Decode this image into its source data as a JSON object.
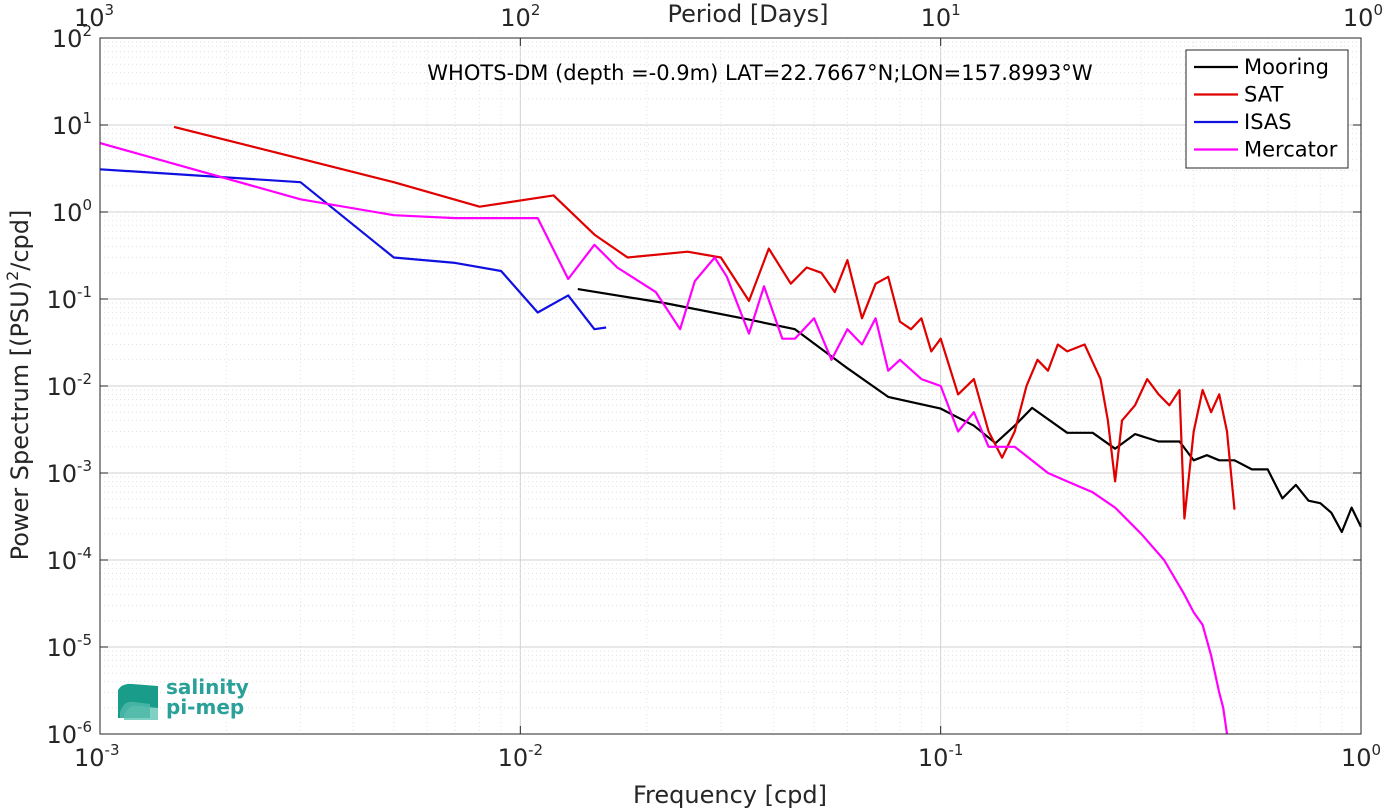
{
  "chart_data": {
    "type": "line",
    "title": "WHOTS-DM (depth =-0.9m) LAT=22.7667°N;LON=157.8993°W",
    "xlabel": "Frequency [cpd]",
    "ylabel": "Power Spectrum [(PSU)²/cpd]",
    "top_xlabel": "Period [Days]",
    "x_scale": "log",
    "y_scale": "log",
    "xlim": [
      0.001,
      1
    ],
    "ylim": [
      1e-06,
      100
    ],
    "grid": true,
    "legend_placement": "top-right",
    "x_ticks": [
      {
        "v": 0.001,
        "base": "10",
        "exp": "-3"
      },
      {
        "v": 0.01,
        "base": "10",
        "exp": "-2"
      },
      {
        "v": 0.1,
        "base": "10",
        "exp": "-1"
      },
      {
        "v": 1,
        "base": "10",
        "exp": "0"
      }
    ],
    "y_ticks": [
      {
        "v": 100,
        "base": "10",
        "exp": "2"
      },
      {
        "v": 10,
        "base": "10",
        "exp": "1"
      },
      {
        "v": 1,
        "base": "10",
        "exp": "0"
      },
      {
        "v": 0.1,
        "base": "10",
        "exp": "-1"
      },
      {
        "v": 0.01,
        "base": "10",
        "exp": "-2"
      },
      {
        "v": 0.001,
        "base": "10",
        "exp": "-3"
      },
      {
        "v": 0.0001,
        "base": "10",
        "exp": "-4"
      },
      {
        "v": 1e-05,
        "base": "10",
        "exp": "-5"
      },
      {
        "v": 1e-06,
        "base": "10",
        "exp": "-6"
      }
    ],
    "top_ticks": [
      {
        "v": 0.001,
        "base": "10",
        "exp": "3"
      },
      {
        "v": 0.01,
        "base": "10",
        "exp": "2"
      },
      {
        "v": 0.1,
        "base": "10",
        "exp": "1"
      },
      {
        "v": 1,
        "base": "10",
        "exp": "0"
      }
    ],
    "series": [
      {
        "name": "Mooring",
        "color": "#000000",
        "points": [
          [
            0.0137,
            0.13
          ],
          [
            0.022,
            0.09
          ],
          [
            0.035,
            0.058
          ],
          [
            0.045,
            0.045
          ],
          [
            0.06,
            0.016
          ],
          [
            0.075,
            0.0075
          ],
          [
            0.1,
            0.0055
          ],
          [
            0.12,
            0.0035
          ],
          [
            0.135,
            0.0022
          ],
          [
            0.15,
            0.0035
          ],
          [
            0.165,
            0.0056
          ],
          [
            0.2,
            0.0029
          ],
          [
            0.23,
            0.0029
          ],
          [
            0.26,
            0.0019
          ],
          [
            0.29,
            0.0028
          ],
          [
            0.33,
            0.0023
          ],
          [
            0.37,
            0.0023
          ],
          [
            0.4,
            0.0014
          ],
          [
            0.43,
            0.0016
          ],
          [
            0.46,
            0.0014
          ],
          [
            0.5,
            0.0014
          ],
          [
            0.55,
            0.0011
          ],
          [
            0.6,
            0.0011
          ],
          [
            0.65,
            0.00051
          ],
          [
            0.7,
            0.00073
          ],
          [
            0.75,
            0.00048
          ],
          [
            0.8,
            0.00045
          ],
          [
            0.85,
            0.00035
          ],
          [
            0.9,
            0.00021
          ],
          [
            0.95,
            0.0004
          ],
          [
            1,
            0.00024
          ]
        ]
      },
      {
        "name": "SAT",
        "color": "#e00000",
        "points": [
          [
            0.0015,
            9.5
          ],
          [
            0.003,
            4.1
          ],
          [
            0.005,
            2.2
          ],
          [
            0.008,
            1.15
          ],
          [
            0.012,
            1.55
          ],
          [
            0.015,
            0.55
          ],
          [
            0.018,
            0.3
          ],
          [
            0.025,
            0.35
          ],
          [
            0.03,
            0.3
          ],
          [
            0.035,
            0.095
          ],
          [
            0.039,
            0.38
          ],
          [
            0.044,
            0.15
          ],
          [
            0.048,
            0.23
          ],
          [
            0.052,
            0.2
          ],
          [
            0.056,
            0.12
          ],
          [
            0.06,
            0.28
          ],
          [
            0.065,
            0.06
          ],
          [
            0.07,
            0.15
          ],
          [
            0.075,
            0.18
          ],
          [
            0.08,
            0.055
          ],
          [
            0.085,
            0.045
          ],
          [
            0.09,
            0.06
          ],
          [
            0.095,
            0.025
          ],
          [
            0.1,
            0.035
          ],
          [
            0.11,
            0.008
          ],
          [
            0.12,
            0.012
          ],
          [
            0.13,
            0.003
          ],
          [
            0.14,
            0.0015
          ],
          [
            0.15,
            0.003
          ],
          [
            0.16,
            0.01
          ],
          [
            0.17,
            0.02
          ],
          [
            0.18,
            0.015
          ],
          [
            0.19,
            0.03
          ],
          [
            0.2,
            0.025
          ],
          [
            0.22,
            0.03
          ],
          [
            0.24,
            0.012
          ],
          [
            0.25,
            0.004
          ],
          [
            0.26,
            0.0008
          ],
          [
            0.27,
            0.004
          ],
          [
            0.29,
            0.006
          ],
          [
            0.31,
            0.012
          ],
          [
            0.33,
            0.008
          ],
          [
            0.35,
            0.006
          ],
          [
            0.37,
            0.009
          ],
          [
            0.38,
            0.0003
          ],
          [
            0.4,
            0.003
          ],
          [
            0.42,
            0.009
          ],
          [
            0.44,
            0.005
          ],
          [
            0.46,
            0.008
          ],
          [
            0.48,
            0.003
          ],
          [
            0.5,
            0.00038
          ]
        ]
      },
      {
        "name": "ISAS",
        "color": "#1010e0",
        "points": [
          [
            0.001,
            3.1
          ],
          [
            0.003,
            2.2
          ],
          [
            0.005,
            0.3
          ],
          [
            0.007,
            0.26
          ],
          [
            0.009,
            0.21
          ],
          [
            0.011,
            0.07
          ],
          [
            0.013,
            0.11
          ],
          [
            0.015,
            0.045
          ],
          [
            0.016,
            0.047
          ]
        ]
      },
      {
        "name": "Mercator",
        "color": "#ff00ff",
        "points": [
          [
            0.001,
            6.2
          ],
          [
            0.003,
            1.4
          ],
          [
            0.005,
            0.92
          ],
          [
            0.007,
            0.85
          ],
          [
            0.011,
            0.85
          ],
          [
            0.013,
            0.17
          ],
          [
            0.015,
            0.42
          ],
          [
            0.017,
            0.23
          ],
          [
            0.021,
            0.12
          ],
          [
            0.024,
            0.045
          ],
          [
            0.026,
            0.16
          ],
          [
            0.029,
            0.3
          ],
          [
            0.031,
            0.18
          ],
          [
            0.035,
            0.04
          ],
          [
            0.038,
            0.14
          ],
          [
            0.042,
            0.035
          ],
          [
            0.045,
            0.035
          ],
          [
            0.05,
            0.06
          ],
          [
            0.055,
            0.02
          ],
          [
            0.06,
            0.045
          ],
          [
            0.065,
            0.03
          ],
          [
            0.07,
            0.06
          ],
          [
            0.075,
            0.015
          ],
          [
            0.08,
            0.02
          ],
          [
            0.09,
            0.012
          ],
          [
            0.1,
            0.01
          ],
          [
            0.11,
            0.003
          ],
          [
            0.12,
            0.005
          ],
          [
            0.13,
            0.002
          ],
          [
            0.15,
            0.002
          ],
          [
            0.18,
            0.001
          ],
          [
            0.2,
            0.0008
          ],
          [
            0.23,
            0.0006
          ],
          [
            0.26,
            0.0004
          ],
          [
            0.3,
            0.0002
          ],
          [
            0.34,
            0.0001
          ],
          [
            0.38,
            4e-05
          ],
          [
            0.4,
            2.5e-05
          ],
          [
            0.42,
            1.8e-05
          ],
          [
            0.44,
            8e-06
          ],
          [
            0.46,
            3e-06
          ],
          [
            0.47,
            2e-06
          ],
          [
            0.48,
            1e-06
          ]
        ]
      }
    ]
  },
  "logo": {
    "line1": "salinity",
    "line2": "pi-mep"
  }
}
